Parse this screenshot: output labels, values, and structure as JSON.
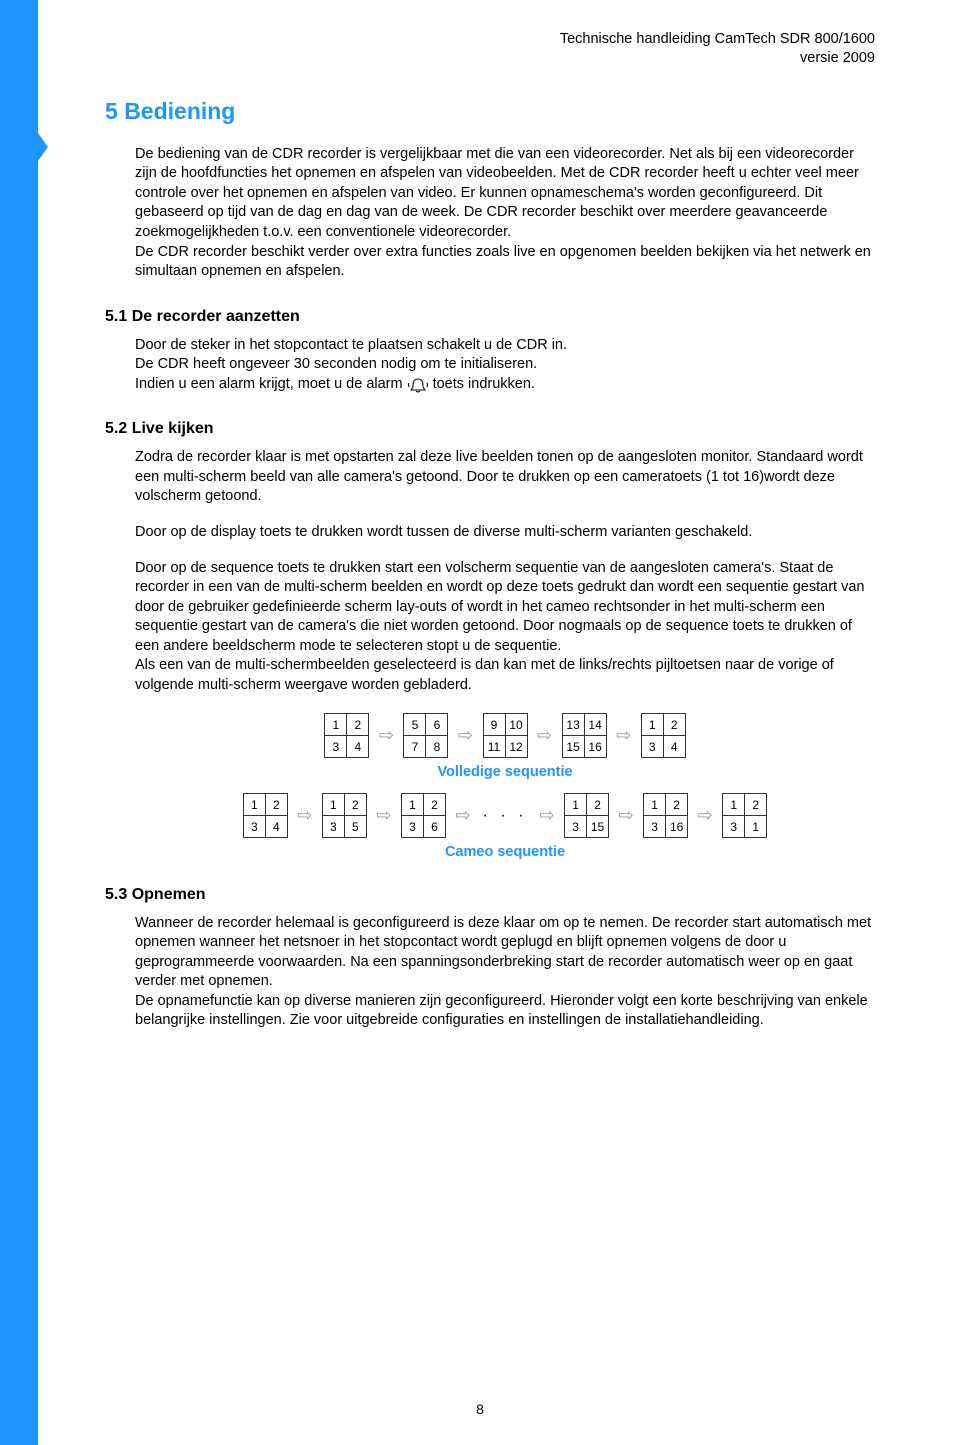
{
  "header": {
    "line1": "Technische handleiding CamTech SDR 800/1600",
    "line2": "versie 2009"
  },
  "section_number": "5",
  "section_title": "Bediening",
  "intro": "De bediening van de CDR recorder is vergelijkbaar met die van een videorecorder. Net als bij een videorecorder zijn de hoofdfuncties het opnemen en afspelen van videobeelden. Met de CDR recorder heeft u echter veel meer controle over het opnemen en afspelen van video. Er kunnen opnameschema's worden geconfigureerd. Dit gebaseerd op tijd van de dag en dag van de week. De CDR recorder beschikt over meerdere geavanceerde zoekmogelijkheden t.o.v. een conventionele videorecorder.",
  "intro2": "De CDR recorder beschikt verder over extra functies zoals live en opgenomen beelden bekijken via het netwerk en simultaan opnemen en afspelen.",
  "s51": {
    "num": "5.1",
    "title": "De recorder aanzetten",
    "p1": "Door de steker in het stopcontact te plaatsen schakelt u de CDR in.",
    "p2": "De CDR heeft ongeveer 30 seconden nodig om te initialiseren.",
    "p3a": "Indien u een alarm krijgt, moet u de alarm",
    "p3b": "toets indrukken."
  },
  "s52": {
    "num": "5.2",
    "title": "Live kijken",
    "p1": "Zodra de recorder klaar is met opstarten zal deze live beelden tonen op de aangesloten monitor. Standaard wordt een multi-scherm beeld van alle camera's getoond. Door te drukken op een cameratoets (1 tot 16)wordt deze volscherm getoond.",
    "p2": "Door op de display toets te drukken wordt tussen de diverse multi-scherm varianten geschakeld.",
    "p3": "Door op de sequence toets te drukken start een volscherm sequentie van de aangesloten camera's. Staat de recorder in een van de multi-scherm beelden en wordt op deze toets gedrukt dan wordt een sequentie gestart van door de gebruiker gedefinieerde scherm lay-outs of wordt in het cameo rechtsonder in het multi-scherm een sequentie gestart van de camera's die niet worden getoond. Door nogmaals op de sequence toets te drukken of een andere beeldscherm mode te selecteren stopt u de sequentie.",
    "p4": "Als een van de multi-schermbeelden geselecteerd is dan kan met de links/rechts pijltoetsen naar de vorige of volgende multi-scherm weergave worden gebladerd."
  },
  "diagram": {
    "full_label": "Volledige sequentie",
    "cameo_label": "Cameo sequentie",
    "full_grids": [
      [
        "1",
        "2",
        "3",
        "4"
      ],
      [
        "5",
        "6",
        "7",
        "8"
      ],
      [
        "9",
        "10",
        "11",
        "12"
      ],
      [
        "13",
        "14",
        "15",
        "16"
      ],
      [
        "1",
        "2",
        "3",
        "4"
      ]
    ],
    "cameo_grids": [
      [
        "1",
        "2",
        "3",
        "4"
      ],
      [
        "1",
        "2",
        "3",
        "5"
      ],
      [
        "1",
        "2",
        "3",
        "6"
      ],
      [
        "1",
        "2",
        "3",
        "15"
      ],
      [
        "1",
        "2",
        "3",
        "16"
      ],
      [
        "1",
        "2",
        "3",
        "1"
      ]
    ],
    "dots": "· · ·"
  },
  "s53": {
    "num": "5.3",
    "title": "Opnemen",
    "p1": "Wanneer de recorder helemaal is geconfigureerd is deze klaar om op te nemen. De recorder start automatisch met opnemen wanneer het netsnoer in het stopcontact wordt geplugd en blijft opnemen volgens de door u geprogrammeerde voorwaarden. Na een spanningsonderbreking start de recorder automatisch weer op en gaat verder met opnemen.",
    "p2": "De opnamefunctie kan op diverse manieren zijn geconfigureerd. Hieronder volgt een korte beschrijving van enkele belangrijke instellingen. Zie voor uitgebreide configuraties en instellingen de installatiehandleiding."
  },
  "pagenum": "8",
  "colors": {
    "accent": "#1f95ff",
    "text": "#000000",
    "arrow": "#999999"
  }
}
